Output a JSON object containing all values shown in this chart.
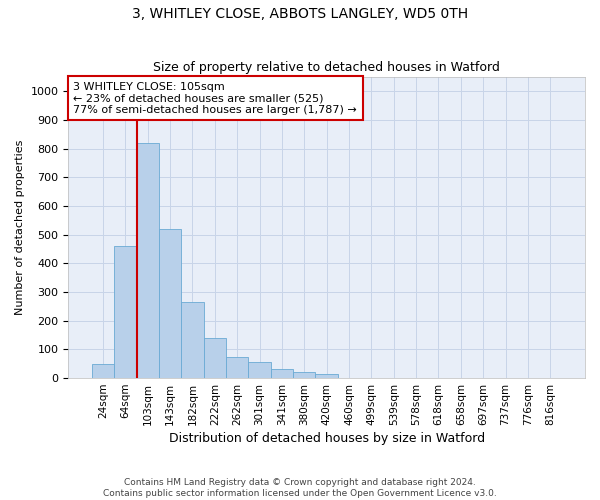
{
  "title": "3, WHITLEY CLOSE, ABBOTS LANGLEY, WD5 0TH",
  "subtitle": "Size of property relative to detached houses in Watford",
  "xlabel": "Distribution of detached houses by size in Watford",
  "ylabel": "Number of detached properties",
  "footer_line1": "Contains HM Land Registry data © Crown copyright and database right 2024.",
  "footer_line2": "Contains public sector information licensed under the Open Government Licence v3.0.",
  "bar_labels": [
    "24sqm",
    "64sqm",
    "103sqm",
    "143sqm",
    "182sqm",
    "222sqm",
    "262sqm",
    "301sqm",
    "341sqm",
    "380sqm",
    "420sqm",
    "460sqm",
    "499sqm",
    "539sqm",
    "578sqm",
    "618sqm",
    "658sqm",
    "697sqm",
    "737sqm",
    "776sqm",
    "816sqm"
  ],
  "bar_values": [
    50,
    460,
    820,
    520,
    265,
    140,
    75,
    55,
    30,
    20,
    15,
    0,
    0,
    0,
    0,
    0,
    0,
    0,
    0,
    0,
    0
  ],
  "bar_color": "#b8d0ea",
  "bar_edge_color": "#6aaad4",
  "grid_color": "#c8d4e8",
  "background_color": "#e8eef8",
  "vline_color": "#cc0000",
  "annotation_box_color": "#cc0000",
  "annotation_text": "3 WHITLEY CLOSE: 105sqm\n← 23% of detached houses are smaller (525)\n77% of semi-detached houses are larger (1,787) →",
  "ylim": [
    0,
    1050
  ],
  "yticks": [
    0,
    100,
    200,
    300,
    400,
    500,
    600,
    700,
    800,
    900,
    1000
  ],
  "title_fontsize": 10,
  "subtitle_fontsize": 9,
  "ylabel_fontsize": 8,
  "xlabel_fontsize": 9,
  "tick_fontsize": 8,
  "xtick_fontsize": 7.5,
  "annotation_fontsize": 8,
  "footer_fontsize": 6.5
}
